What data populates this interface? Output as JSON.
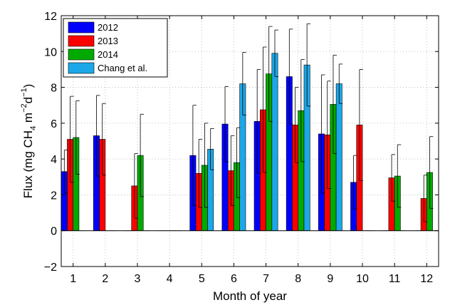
{
  "chart_data": {
    "type": "bar",
    "xlabel": "Month of year",
    "ylabel": {
      "prefix": "Flux (mg CH",
      "ch4_subscript": "4",
      "m_text": " m",
      "m_superscript": "−2",
      "d_text": "d",
      "d_superscript": "−1",
      "suffix": ")"
    },
    "ylim": [
      -2,
      12
    ],
    "yticks": [
      "−2",
      "0",
      "2",
      "4",
      "6",
      "8",
      "10",
      "12"
    ],
    "categories": [
      "1",
      "2",
      "3",
      "4",
      "5",
      "6",
      "7",
      "8",
      "9",
      "10",
      "11",
      "12"
    ],
    "grid": true,
    "legend_position": "top-left",
    "series": [
      {
        "name": "2012",
        "color": "#0000ff",
        "values": [
          3.3,
          5.3,
          0,
          0,
          4.2,
          5.95,
          6.1,
          8.6,
          5.4,
          2.7,
          0,
          0
        ],
        "err": [
          1.2,
          2.25,
          0,
          0,
          2.8,
          2.1,
          2.9,
          2.65,
          3.3,
          1.5,
          0,
          0
        ]
      },
      {
        "name": "2013",
        "color": "#ff0000",
        "values": [
          5.1,
          5.1,
          2.5,
          0,
          3.2,
          3.35,
          6.75,
          5.9,
          5.35,
          5.9,
          2.95,
          1.8
        ],
        "err": [
          2.4,
          2.0,
          1.8,
          0,
          1.9,
          1.95,
          3.5,
          2.1,
          3.0,
          3.1,
          1.3,
          1.3
        ]
      },
      {
        "name": "2014",
        "color": "#00aa00",
        "values": [
          5.2,
          0,
          4.2,
          0,
          3.65,
          3.8,
          8.75,
          6.7,
          7.05,
          0,
          3.05,
          3.25
        ],
        "err": [
          2.05,
          0,
          2.3,
          0,
          2.35,
          1.95,
          2.65,
          2.85,
          2.75,
          0,
          1.75,
          2.0
        ]
      },
      {
        "name": "Chang et al.",
        "color": "#1ca8e8",
        "values": [
          0,
          0,
          0,
          0,
          4.55,
          8.2,
          9.9,
          9.25,
          8.2,
          0,
          0,
          0
        ],
        "err": [
          0,
          0,
          0,
          0,
          1.15,
          1.75,
          1.3,
          2.3,
          1.1,
          0,
          0,
          0
        ]
      }
    ]
  }
}
